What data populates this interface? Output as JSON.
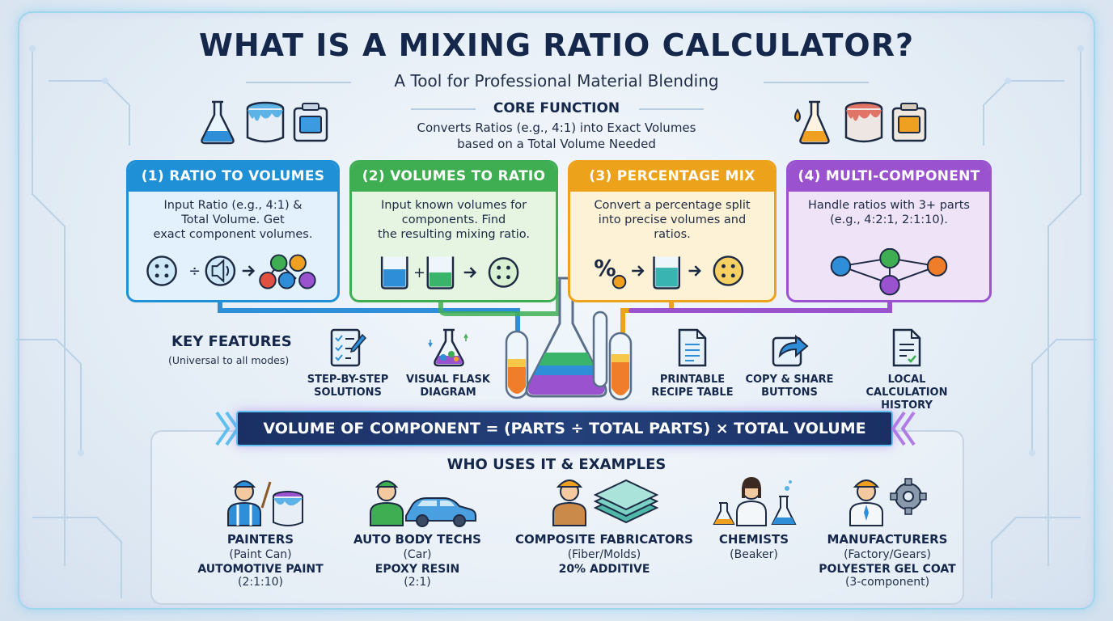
{
  "title": "WHAT IS A MIXING RATIO CALCULATOR?",
  "subtitle": "A Tool for Professional Material Blending",
  "core": {
    "label": "CORE FUNCTION",
    "line1": "Converts Ratios (e.g., 4:1) into Exact Volumes",
    "line2": "based on a Total Volume Needed"
  },
  "modes": [
    {
      "title": "(1)  RATIO TO VOLUMES",
      "lines": [
        "Input Ratio (e.g., 4:1) &",
        "Total Volume. Get",
        "exact component volumes."
      ],
      "color": "#1f8fd6",
      "bg": "#e2f1fb"
    },
    {
      "title": "(2) VOLUMES TO RATIO",
      "lines": [
        "Input known volumes for",
        "components. Find",
        "the resulting mixing ratio."
      ],
      "color": "#3fae52",
      "bg": "#e5f5e2"
    },
    {
      "title": "(3)  PERCENTAGE MIX",
      "lines": [
        "Convert a percentage split",
        "into precise volumes and ratios."
      ],
      "color": "#eda21c",
      "bg": "#fdf2d6"
    },
    {
      "title": "(4) MULTI-COMPONENT",
      "lines": [
        "Handle ratios with 3+ parts",
        "(e.g., 4:2:1, 2:1:10)."
      ],
      "color": "#9a52cf",
      "bg": "#efe3f8"
    }
  ],
  "key_features": {
    "title": "KEY FEATURES",
    "subtitle": "(Universal to all modes)",
    "items": [
      {
        "line1": "STEP-BY-STEP",
        "line2": "SOLUTIONS",
        "icon": "checklist-icon"
      },
      {
        "line1": "VISUAL FLASK",
        "line2": "DIAGRAM",
        "icon": "flask-icon"
      },
      {
        "line1": "PRINTABLE",
        "line2": "RECIPE TABLE",
        "icon": "document-icon"
      },
      {
        "line1": "COPY & SHARE",
        "line2": "BUTTONS",
        "icon": "share-icon"
      },
      {
        "line1": "LOCAL CALCULATION",
        "line2": "HISTORY",
        "icon": "history-document-icon"
      }
    ]
  },
  "formula": "VOLUME OF COMPONENT = (PARTS ÷ TOTAL PARTS) × TOTAL VOLUME",
  "users": {
    "title": "WHO USES IT & EXAMPLES",
    "items": [
      {
        "role": "PAINTERS",
        "icon_label": "(Paint Can)",
        "example": "AUTOMOTIVE PAINT",
        "ratio": "(2:1:10)"
      },
      {
        "role": "AUTO BODY TECHS",
        "icon_label": "(Car)",
        "example": "EPOXY RESIN",
        "ratio": "(2:1)"
      },
      {
        "role": "COMPOSITE FABRICATORS",
        "icon_label": "(Fiber/Molds)",
        "example": "20% ADDITIVE",
        "ratio": ""
      },
      {
        "role": "CHEMISTS",
        "icon_label": "(Beaker)",
        "example": "",
        "ratio": ""
      },
      {
        "role": "MANUFACTURERS",
        "icon_label": "(Factory/Gears)",
        "example": "POLYESTER GEL COAT",
        "ratio": "(3-component)"
      }
    ]
  }
}
